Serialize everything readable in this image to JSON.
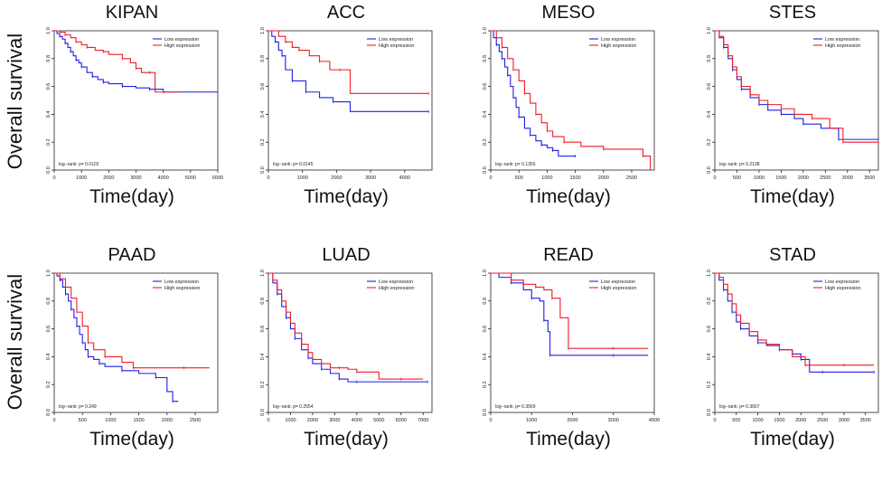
{
  "y_label": "Overall survival",
  "x_label": "Time(day)",
  "legend": {
    "low": "Low expression",
    "high": "High expression"
  },
  "colors": {
    "low": "#1f1fe6",
    "high": "#ee1c25",
    "axis": "#222222"
  },
  "chart_data": [
    {
      "type": "line",
      "title": "KIPAN",
      "xlim": [
        0,
        6000
      ],
      "xticks": [
        0,
        1000,
        2000,
        3000,
        4000,
        5000,
        6000
      ],
      "ylim": [
        0,
        1
      ],
      "yticks": [
        0,
        0.2,
        0.4,
        0.6,
        0.8,
        1.0
      ],
      "pvalue": "log−rank: p= 0.0102",
      "legend_position": "top-right",
      "series": [
        {
          "name": "Low expression",
          "x": [
            0,
            100,
            200,
            300,
            400,
            500,
            600,
            700,
            800,
            900,
            1000,
            1200,
            1400,
            1600,
            1800,
            2000,
            2500,
            3000,
            3500,
            4000,
            6000
          ],
          "y": [
            1.0,
            0.98,
            0.96,
            0.94,
            0.91,
            0.88,
            0.85,
            0.82,
            0.79,
            0.77,
            0.74,
            0.7,
            0.67,
            0.65,
            0.63,
            0.62,
            0.6,
            0.59,
            0.58,
            0.56,
            0.56
          ]
        },
        {
          "name": "High expression",
          "x": [
            0,
            200,
            400,
            600,
            800,
            1000,
            1200,
            1500,
            1800,
            2000,
            2500,
            2800,
            3000,
            3200,
            3500,
            3700,
            4000,
            4600
          ],
          "y": [
            1.0,
            0.99,
            0.97,
            0.95,
            0.92,
            0.9,
            0.88,
            0.86,
            0.85,
            0.83,
            0.8,
            0.77,
            0.73,
            0.7,
            0.7,
            0.56,
            0.56,
            0.56
          ]
        }
      ]
    },
    {
      "type": "line",
      "title": "ACC",
      "xlim": [
        0,
        4800
      ],
      "xticks": [
        0,
        1000,
        2000,
        3000,
        4000
      ],
      "ylim": [
        0,
        1
      ],
      "yticks": [
        0,
        0.2,
        0.4,
        0.6,
        0.8,
        1.0
      ],
      "pvalue": "log−rank: p= 0.0145",
      "legend_position": "top-right",
      "series": [
        {
          "name": "Low expression",
          "x": [
            0,
            100,
            200,
            300,
            400,
            500,
            700,
            900,
            1100,
            1500,
            1900,
            2400,
            4700
          ],
          "y": [
            1.0,
            0.96,
            0.92,
            0.86,
            0.82,
            0.72,
            0.64,
            0.64,
            0.56,
            0.52,
            0.49,
            0.42,
            0.42
          ]
        },
        {
          "name": "High expression",
          "x": [
            0,
            300,
            500,
            700,
            900,
            1200,
            1500,
            1800,
            2100,
            2400,
            4700
          ],
          "y": [
            1.0,
            0.96,
            0.92,
            0.88,
            0.86,
            0.82,
            0.78,
            0.72,
            0.72,
            0.55,
            0.55
          ]
        }
      ]
    },
    {
      "type": "line",
      "title": "MESO",
      "xlim": [
        0,
        2900
      ],
      "xticks": [
        0,
        500,
        1000,
        1500,
        2000,
        2500
      ],
      "ylim": [
        0,
        1
      ],
      "yticks": [
        0,
        0.2,
        0.4,
        0.6,
        0.8,
        1.0
      ],
      "pvalue": "log−rank: p= 0.1356",
      "legend_position": "top-right",
      "series": [
        {
          "name": "Low expression",
          "x": [
            0,
            50,
            100,
            150,
            200,
            250,
            300,
            350,
            400,
            450,
            500,
            600,
            700,
            800,
            900,
            1000,
            1100,
            1200,
            1500
          ],
          "y": [
            1.0,
            0.95,
            0.9,
            0.85,
            0.8,
            0.74,
            0.68,
            0.6,
            0.52,
            0.45,
            0.38,
            0.3,
            0.25,
            0.21,
            0.18,
            0.16,
            0.14,
            0.1,
            0.1
          ]
        },
        {
          "name": "High expression",
          "x": [
            0,
            100,
            200,
            300,
            400,
            500,
            600,
            700,
            800,
            900,
            1000,
            1100,
            1300,
            1600,
            2000,
            2500,
            2700,
            2830
          ],
          "y": [
            1.0,
            0.95,
            0.88,
            0.8,
            0.72,
            0.64,
            0.55,
            0.48,
            0.4,
            0.34,
            0.28,
            0.24,
            0.2,
            0.17,
            0.15,
            0.15,
            0.1,
            0.0
          ]
        }
      ]
    },
    {
      "type": "line",
      "title": "STES",
      "xlim": [
        0,
        3700
      ],
      "xticks": [
        0,
        500,
        1000,
        1500,
        2000,
        2500,
        3000,
        3500
      ],
      "ylim": [
        0,
        1
      ],
      "yticks": [
        0,
        0.2,
        0.4,
        0.6,
        0.8,
        1.0
      ],
      "pvalue": "log−rank: p= 0.2138",
      "legend_position": "top-right",
      "series": [
        {
          "name": "Low expression",
          "x": [
            0,
            100,
            200,
            300,
            400,
            500,
            600,
            800,
            1000,
            1200,
            1500,
            1800,
            2000,
            2400,
            2800,
            3200,
            3700
          ],
          "y": [
            1.0,
            0.95,
            0.88,
            0.8,
            0.72,
            0.65,
            0.58,
            0.52,
            0.47,
            0.43,
            0.4,
            0.37,
            0.33,
            0.3,
            0.22,
            0.22,
            0.22
          ]
        },
        {
          "name": "High expression",
          "x": [
            0,
            100,
            200,
            300,
            400,
            500,
            600,
            800,
            1000,
            1200,
            1500,
            1800,
            2200,
            2600,
            2900,
            3300,
            3700
          ],
          "y": [
            1.0,
            0.96,
            0.9,
            0.82,
            0.74,
            0.67,
            0.6,
            0.54,
            0.5,
            0.47,
            0.44,
            0.4,
            0.37,
            0.3,
            0.2,
            0.2,
            0.2
          ]
        }
      ]
    },
    {
      "type": "line",
      "title": "PAAD",
      "xlim": [
        0,
        2900
      ],
      "xticks": [
        0,
        500,
        1000,
        1500,
        2000,
        2500
      ],
      "ylim": [
        0,
        1
      ],
      "yticks": [
        0,
        0.2,
        0.4,
        0.6,
        0.8,
        1.0
      ],
      "pvalue": "log−rank: p= 0.249",
      "legend_position": "top-right",
      "series": [
        {
          "name": "Low expression",
          "x": [
            0,
            50,
            100,
            150,
            200,
            250,
            300,
            350,
            400,
            450,
            500,
            550,
            600,
            700,
            800,
            900,
            1200,
            1500,
            1800,
            2000,
            2100,
            2200
          ],
          "y": [
            1.0,
            0.98,
            0.95,
            0.9,
            0.85,
            0.8,
            0.74,
            0.68,
            0.62,
            0.56,
            0.5,
            0.45,
            0.4,
            0.38,
            0.35,
            0.33,
            0.3,
            0.28,
            0.25,
            0.15,
            0.08,
            0.08
          ]
        },
        {
          "name": "High expression",
          "x": [
            0,
            100,
            200,
            300,
            400,
            500,
            600,
            700,
            900,
            1200,
            1400,
            1800,
            2300,
            2750
          ],
          "y": [
            1.0,
            0.96,
            0.9,
            0.82,
            0.72,
            0.62,
            0.5,
            0.45,
            0.4,
            0.36,
            0.32,
            0.32,
            0.32,
            0.32
          ]
        }
      ]
    },
    {
      "type": "line",
      "title": "LUAD",
      "xlim": [
        0,
        7400
      ],
      "xticks": [
        0,
        1000,
        2000,
        3000,
        4000,
        5000,
        6000,
        7000
      ],
      "ylim": [
        0,
        1
      ],
      "yticks": [
        0,
        0.2,
        0.4,
        0.6,
        0.8,
        1.0
      ],
      "pvalue": "log−rank: p= 0.2554",
      "legend_position": "top-right",
      "series": [
        {
          "name": "Low expression",
          "x": [
            0,
            200,
            400,
            600,
            800,
            1000,
            1200,
            1500,
            1800,
            2000,
            2400,
            2800,
            3200,
            3600,
            4000,
            5000,
            7200
          ],
          "y": [
            1.0,
            0.93,
            0.85,
            0.76,
            0.68,
            0.6,
            0.53,
            0.45,
            0.39,
            0.35,
            0.31,
            0.28,
            0.24,
            0.22,
            0.22,
            0.22,
            0.22
          ]
        },
        {
          "name": "High expression",
          "x": [
            0,
            200,
            400,
            600,
            800,
            1000,
            1200,
            1500,
            1800,
            2000,
            2400,
            2800,
            3200,
            3600,
            4000,
            5000,
            6000,
            7000
          ],
          "y": [
            1.0,
            0.95,
            0.88,
            0.8,
            0.72,
            0.64,
            0.57,
            0.49,
            0.43,
            0.38,
            0.35,
            0.32,
            0.32,
            0.31,
            0.29,
            0.24,
            0.24,
            0.24
          ]
        }
      ]
    },
    {
      "type": "line",
      "title": "READ",
      "xlim": [
        0,
        4000
      ],
      "xticks": [
        0,
        1000,
        2000,
        3000,
        4000
      ],
      "ylim": [
        0,
        1
      ],
      "yticks": [
        0,
        0.2,
        0.4,
        0.6,
        0.8,
        1.0
      ],
      "pvalue": "log−rank: p= 0.3569",
      "legend_position": "top-right",
      "series": [
        {
          "name": "Low expression",
          "x": [
            0,
            200,
            500,
            800,
            1000,
            1200,
            1300,
            1400,
            1450,
            2000,
            3000,
            3850
          ],
          "y": [
            1.0,
            0.97,
            0.93,
            0.88,
            0.82,
            0.8,
            0.66,
            0.58,
            0.41,
            0.41,
            0.41,
            0.41
          ]
        },
        {
          "name": "High expression",
          "x": [
            0,
            200,
            500,
            800,
            1100,
            1300,
            1500,
            1700,
            1900,
            2500,
            3000,
            3850
          ],
          "y": [
            1.0,
            1.0,
            0.95,
            0.92,
            0.9,
            0.88,
            0.82,
            0.68,
            0.46,
            0.46,
            0.46,
            0.46
          ]
        }
      ]
    },
    {
      "type": "line",
      "title": "STAD",
      "xlim": [
        0,
        3800
      ],
      "xticks": [
        0,
        500,
        1000,
        1500,
        2000,
        2500,
        3000,
        3500
      ],
      "ylim": [
        0,
        1
      ],
      "yticks": [
        0,
        0.2,
        0.4,
        0.6,
        0.8,
        1.0
      ],
      "pvalue": "log−rank: p= 0.3607",
      "legend_position": "top-right",
      "series": [
        {
          "name": "Low expression",
          "x": [
            0,
            100,
            200,
            300,
            400,
            500,
            600,
            800,
            1000,
            1200,
            1500,
            1800,
            2000,
            2200,
            2500,
            3000,
            3700
          ],
          "y": [
            1.0,
            0.95,
            0.88,
            0.8,
            0.72,
            0.65,
            0.6,
            0.55,
            0.5,
            0.48,
            0.45,
            0.42,
            0.38,
            0.29,
            0.29,
            0.29,
            0.29
          ]
        },
        {
          "name": "High expression",
          "x": [
            0,
            100,
            200,
            300,
            400,
            500,
            600,
            800,
            1000,
            1200,
            1500,
            1800,
            2100,
            2400,
            3000,
            3700
          ],
          "y": [
            1.0,
            0.97,
            0.92,
            0.85,
            0.78,
            0.7,
            0.64,
            0.58,
            0.52,
            0.49,
            0.45,
            0.4,
            0.34,
            0.34,
            0.34,
            0.34
          ]
        }
      ]
    }
  ]
}
